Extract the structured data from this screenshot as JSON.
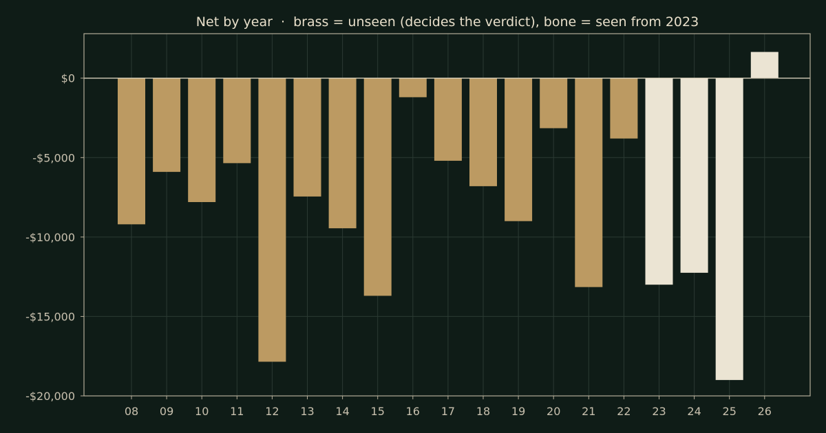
{
  "chart_data": {
    "type": "bar",
    "title": "Net by year  ·  brass = unseen (decides the verdict), bone = seen from 2023",
    "xlabel": "",
    "ylabel": "",
    "categories": [
      "08",
      "09",
      "10",
      "11",
      "12",
      "13",
      "14",
      "15",
      "16",
      "17",
      "18",
      "19",
      "20",
      "21",
      "22",
      "23",
      "24",
      "25",
      "26"
    ],
    "values": [
      -9200,
      -5900,
      -7800,
      -5350,
      -17850,
      -7450,
      -9450,
      -13700,
      -1200,
      -5200,
      -6800,
      -9000,
      -3150,
      -13150,
      -3800,
      -13000,
      -12250,
      -19000,
      1650
    ],
    "bar_colors": [
      "#bc9a62",
      "#bc9a62",
      "#bc9a62",
      "#bc9a62",
      "#bc9a62",
      "#bc9a62",
      "#bc9a62",
      "#bc9a62",
      "#bc9a62",
      "#bc9a62",
      "#bc9a62",
      "#bc9a62",
      "#bc9a62",
      "#bc9a62",
      "#bc9a62",
      "#ebe4d3",
      "#ebe4d3",
      "#ebe4d3",
      "#ebe4d3"
    ],
    "ylim": [
      -20000,
      2800
    ],
    "yticks": [
      0,
      -5000,
      -10000,
      -15000,
      -20000
    ],
    "ytick_labels": [
      "$0",
      "-$5,000",
      "-$10,000",
      "-$15,000",
      "-$20,000"
    ],
    "grid": true,
    "legend": "none",
    "colors": {
      "background": "#0f1c17",
      "frame": "#b5ad99",
      "grid": "#2b3a33",
      "zero_line": "#d4ccb8",
      "unseen": "#bc9a62",
      "seen": "#ebe4d3"
    }
  }
}
